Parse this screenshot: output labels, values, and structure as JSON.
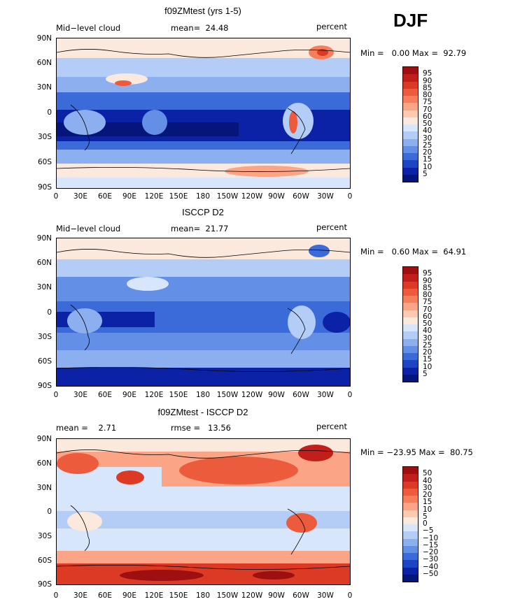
{
  "season": "DJF",
  "lat_labels": [
    "90N",
    "60N",
    "30N",
    "0",
    "30S",
    "60S",
    "90S"
  ],
  "lon_labels": [
    "0",
    "30E",
    "60E",
    "90E",
    "120E",
    "150E",
    "180",
    "150W",
    "120W",
    "90W",
    "60W",
    "30W",
    "0"
  ],
  "panels": [
    {
      "title": "f09ZMtest (yrs 1-5)",
      "left_label": "Mid−level cloud",
      "center_label": "mean=  24.48",
      "right_label": "percent",
      "minmax": "Min =   0.00 Max =  92.79",
      "colorbar_labels": [
        "95",
        "90",
        "85",
        "80",
        "75",
        "70",
        "60",
        "50",
        "40",
        "30",
        "25",
        "20",
        "15",
        "10",
        "5"
      ],
      "colorbar_colors": [
        "#9e0f12",
        "#c21f1a",
        "#dc3a24",
        "#ec5b3b",
        "#f57e5c",
        "#fba486",
        "#fdc9b0",
        "#fbe9de",
        "#d8e6fb",
        "#b4cdf6",
        "#8cb0ef",
        "#6390e6",
        "#3b6ad9",
        "#1c44c4",
        "#0b22a6",
        "#06157c"
      ]
    },
    {
      "title": "ISCCP D2",
      "left_label": "Mid−level cloud",
      "center_label": "mean=  21.77",
      "right_label": "percent",
      "minmax": "Min =   0.60 Max =  64.91",
      "colorbar_labels": [
        "95",
        "90",
        "85",
        "80",
        "75",
        "70",
        "60",
        "50",
        "40",
        "30",
        "25",
        "20",
        "15",
        "10",
        "5"
      ],
      "colorbar_colors": [
        "#9e0f12",
        "#c21f1a",
        "#dc3a24",
        "#ec5b3b",
        "#f57e5c",
        "#fba486",
        "#fdc9b0",
        "#fbe9de",
        "#d8e6fb",
        "#b4cdf6",
        "#8cb0ef",
        "#6390e6",
        "#3b6ad9",
        "#1c44c4",
        "#0b22a6",
        "#06157c"
      ]
    },
    {
      "title": "f09ZMtest - ISCCP D2",
      "left_label": "mean =    2.71",
      "center_label": "rmse =   13.56",
      "right_label": "percent",
      "minmax": "Min = −23.95 Max =  80.75",
      "colorbar_labels": [
        "50",
        "40",
        "30",
        "20",
        "15",
        "10",
        "5",
        "0",
        "−5",
        "−10",
        "−15",
        "−20",
        "−30",
        "−40",
        "−50"
      ],
      "colorbar_colors": [
        "#9e0f12",
        "#c21f1a",
        "#dc3a24",
        "#ec5b3b",
        "#f57e5c",
        "#fba486",
        "#fdc9b0",
        "#fbe9de",
        "#d8e6fb",
        "#b4cdf6",
        "#8cb0ef",
        "#6390e6",
        "#3b6ad9",
        "#1c44c4",
        "#0b22a6",
        "#06157c"
      ]
    }
  ]
}
